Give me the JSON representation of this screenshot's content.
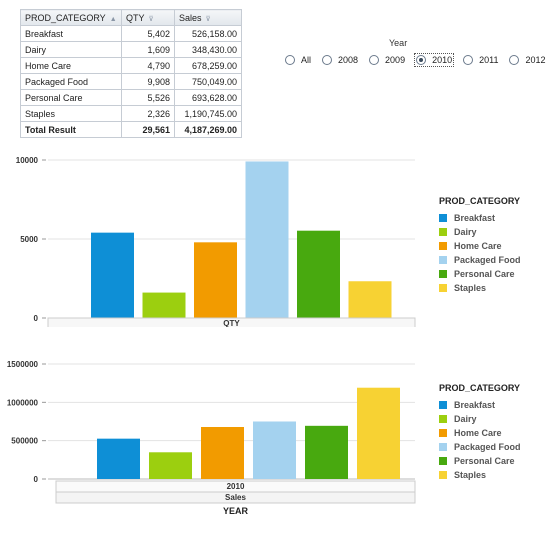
{
  "table": {
    "headers": [
      "PROD_CATEGORY",
      "QTY",
      "Sales"
    ],
    "rows": [
      [
        "Breakfast",
        "5,402",
        "526,158.00"
      ],
      [
        "Dairy",
        "1,609",
        "348,430.00"
      ],
      [
        "Home Care",
        "4,790",
        "678,259.00"
      ],
      [
        "Packaged Food",
        "9,908",
        "750,049.00"
      ],
      [
        "Personal Care",
        "5,526",
        "693,628.00"
      ],
      [
        "Staples",
        "2,326",
        "1,190,745.00"
      ]
    ],
    "total": [
      "Total Result",
      "29,561",
      "4,187,269.00"
    ]
  },
  "filter": {
    "label": "Year",
    "options": [
      "All",
      "2008",
      "2009",
      "2010",
      "2011",
      "2012"
    ],
    "selected": "2010"
  },
  "legend_title": "PROD_CATEGORY",
  "colors": {
    "Breakfast": "#0e8fd6",
    "Dairy": "#9ccf0f",
    "Home Care": "#f29b00",
    "Packaged Food": "#a4d2ef",
    "Personal Care": "#48a90f",
    "Staples": "#f7d233"
  },
  "chart_data": [
    {
      "type": "bar",
      "categories": [
        "Breakfast",
        "Dairy",
        "Home Care",
        "Packaged Food",
        "Personal Care",
        "Staples"
      ],
      "values": [
        5402,
        1609,
        4790,
        9908,
        5526,
        2326
      ],
      "xlabel": "QTY",
      "ylim": [
        0,
        10000
      ],
      "yticks": [
        "0",
        "5000",
        "10000"
      ],
      "ytick_values": [
        0,
        5000,
        10000
      ],
      "legend_title": "PROD_CATEGORY",
      "legend": "right"
    },
    {
      "type": "bar",
      "categories": [
        "Breakfast",
        "Dairy",
        "Home Care",
        "Packaged Food",
        "Personal Care",
        "Staples"
      ],
      "values": [
        526158,
        348430,
        678259,
        750049,
        693628,
        1190745
      ],
      "x_group": "2010",
      "xlabel": "Sales",
      "axis_title": "YEAR",
      "ylim": [
        0,
        1500000
      ],
      "yticks": [
        "0",
        "500000",
        "1000000",
        "1500000"
      ],
      "ytick_values": [
        0,
        500000,
        1000000,
        1500000
      ],
      "legend_title": "PROD_CATEGORY",
      "legend": "right"
    }
  ]
}
